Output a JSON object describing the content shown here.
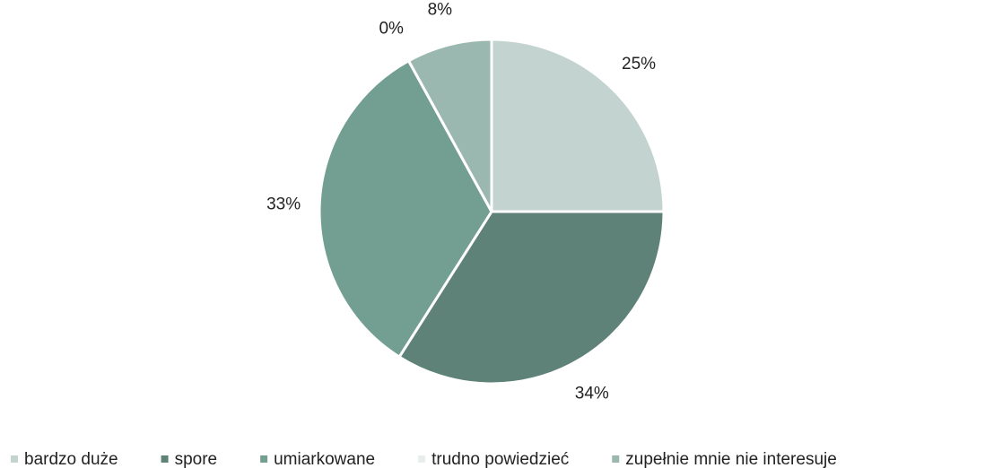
{
  "chart_data": {
    "type": "pie",
    "categories": [
      "bardzo duże",
      "spore",
      "umiarkowane",
      "trudno powiedzieć",
      "zupełnie mnie nie interesuje"
    ],
    "values": [
      25,
      34,
      33,
      0,
      8
    ],
    "value_labels": [
      "25%",
      "34%",
      "33%",
      "0%",
      "8%"
    ],
    "colors": [
      "#c3d3cf",
      "#5f8278",
      "#739e92",
      "#e8eeec",
      "#9ab8af"
    ],
    "legend": "bottom"
  }
}
